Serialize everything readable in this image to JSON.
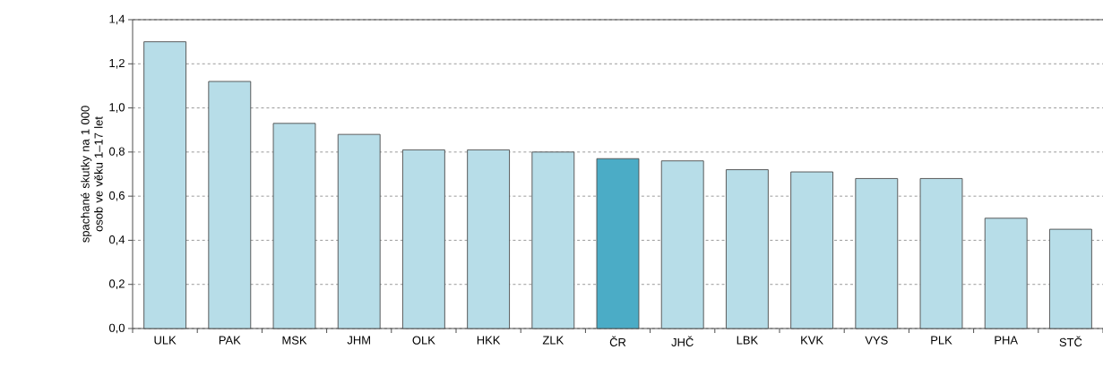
{
  "chart_data": {
    "type": "bar",
    "ylabel": "spachané skutky na 1 000 osob ve věku 1–17 let",
    "categories": [
      "ULK",
      "PAK",
      "MSK",
      "JHM",
      "OLK",
      "HKK",
      "ZLK",
      "ČR",
      "JHČ",
      "LBK",
      "KVK",
      "VYS",
      "PLK",
      "PHA",
      "STČ"
    ],
    "values": [
      1.3,
      1.12,
      0.93,
      0.88,
      0.81,
      0.81,
      0.8,
      0.77,
      0.76,
      0.72,
      0.71,
      0.68,
      0.68,
      0.5,
      0.45
    ],
    "colors": [
      "#b7dde8",
      "#b7dde8",
      "#b7dde8",
      "#b7dde8",
      "#b7dde8",
      "#b7dde8",
      "#b7dde8",
      "#4bacc6",
      "#b7dde8",
      "#b7dde8",
      "#b7dde8",
      "#b7dde8",
      "#b7dde8",
      "#b7dde8",
      "#b7dde8"
    ],
    "ylim": [
      0,
      1.4
    ],
    "yticks": [
      {
        "value": 0,
        "label": "0,0"
      },
      {
        "value": 0.2,
        "label": "0,2"
      },
      {
        "value": 0.4,
        "label": "0,4"
      },
      {
        "value": 0.6,
        "label": "0,6"
      },
      {
        "value": 0.8,
        "label": "0,8"
      },
      {
        "value": 1.0,
        "label": "1,0"
      },
      {
        "value": 1.2,
        "label": "1,2"
      },
      {
        "value": 1.4,
        "label": "1,4"
      }
    ],
    "grid": "y"
  }
}
